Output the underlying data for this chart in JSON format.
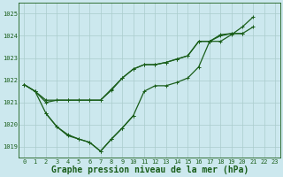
{
  "title": "Graphe pression niveau de la mer (hPa)",
  "bg_color": "#cce8ee",
  "grid_color": "#aacccc",
  "line_color": "#1a5e1a",
  "text_color": "#1a5e1a",
  "xlim": [
    -0.5,
    23.5
  ],
  "ylim": [
    1018.5,
    1025.5
  ],
  "yticks": [
    1019,
    1020,
    1021,
    1022,
    1023,
    1024,
    1025
  ],
  "xticks": [
    0,
    1,
    2,
    3,
    4,
    5,
    6,
    7,
    8,
    9,
    10,
    11,
    12,
    13,
    14,
    15,
    16,
    17,
    18,
    19,
    20,
    21,
    22,
    23
  ],
  "series": [
    {
      "x": [
        0,
        1,
        2,
        3,
        4,
        5,
        6,
        7,
        8,
        9,
        10,
        11,
        12,
        13,
        14,
        15,
        16,
        17,
        18,
        19,
        20,
        21,
        22,
        23
      ],
      "y": [
        1021.8,
        1021.5,
        1021.0,
        1021.1,
        1021.1,
        1021.1,
        1021.1,
        1021.1,
        1021.6,
        1022.1,
        1022.5,
        1022.7,
        1022.7,
        1022.8,
        1022.95,
        1023.1,
        1023.75,
        1023.75,
        1024.0,
        1024.1,
        1024.1,
        1024.4,
        null,
        null
      ]
    },
    {
      "x": [
        0,
        1,
        2,
        3,
        4,
        5,
        6,
        7,
        8,
        9,
        10,
        11,
        12,
        13,
        14,
        15,
        16,
        17,
        18,
        19,
        20,
        21,
        22,
        23
      ],
      "y": [
        1021.8,
        1021.5,
        1020.5,
        1019.9,
        1019.5,
        1019.35,
        1019.2,
        1018.8,
        1019.35,
        1019.85,
        1020.4,
        1021.5,
        1021.75,
        1021.75,
        1021.9,
        1022.1,
        1022.6,
        1023.75,
        1023.75,
        1024.05,
        1024.4,
        1024.85,
        null,
        null
      ]
    },
    {
      "x": [
        0,
        1,
        2,
        3,
        4,
        5,
        6,
        7,
        8,
        9,
        10,
        11,
        12,
        13,
        14,
        15,
        16,
        17,
        18,
        19,
        20,
        21,
        22,
        23
      ],
      "y": [
        1021.8,
        1021.5,
        1021.1,
        1021.1,
        1021.1,
        1021.1,
        1021.1,
        1021.1,
        1021.55,
        1022.1,
        1022.5,
        1022.7,
        1022.7,
        1022.8,
        1022.95,
        1023.1,
        1023.75,
        1023.75,
        1024.05,
        1024.1,
        1024.1,
        null,
        null,
        null
      ]
    },
    {
      "x": [
        2,
        3,
        4,
        5,
        6,
        7,
        8,
        9,
        10
      ],
      "y": [
        1020.5,
        1019.9,
        1019.55,
        1019.35,
        1019.2,
        1018.8,
        1019.35,
        1019.85,
        1020.4
      ]
    }
  ],
  "marker_size": 3,
  "linewidth": 0.9,
  "title_fontsize": 7,
  "tick_fontsize": 5
}
